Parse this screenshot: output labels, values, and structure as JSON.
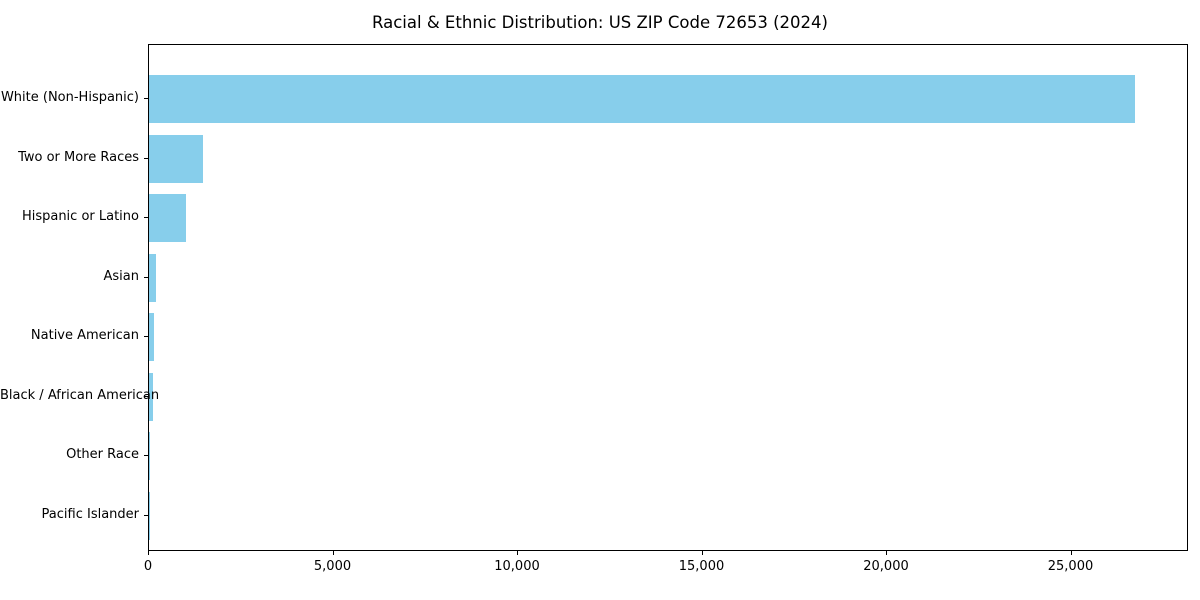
{
  "figure": {
    "background": "#ffffff",
    "text_color": "#000000",
    "spine_color": "#000000"
  },
  "chart_data": {
    "type": "bar",
    "orientation": "horizontal",
    "title": "Racial & Ethnic Distribution: US ZIP Code 72653 (2024)",
    "categories": [
      "White (Non-Hispanic)",
      "Two or More Races",
      "Hispanic or Latino",
      "Asian",
      "Native American",
      "Black / African American",
      "Other Race",
      "Pacific Islander"
    ],
    "values": [
      26730,
      1450,
      990,
      190,
      140,
      110,
      20,
      10
    ],
    "bar_color": "#87CEEB",
    "xlabel": "",
    "ylabel": "",
    "xlim": [
      0,
      28184
    ],
    "x_ticks": [
      0,
      5000,
      10000,
      15000,
      20000,
      25000
    ],
    "x_tick_labels": [
      "0",
      "5,000",
      "10,000",
      "15,000",
      "20,000",
      "25,000"
    ],
    "grid": false,
    "legend": null
  }
}
